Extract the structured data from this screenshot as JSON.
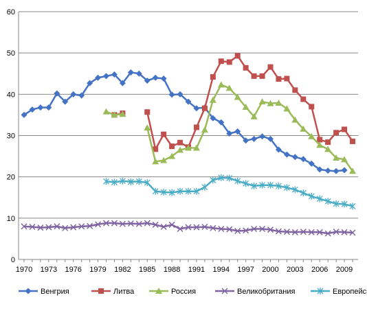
{
  "chart_data": {
    "type": "line",
    "title": "",
    "xlabel": "",
    "ylabel": "",
    "ylim": [
      0,
      60
    ],
    "yticks": [
      0,
      10,
      20,
      30,
      40,
      50,
      60
    ],
    "xlim": [
      1970,
      2010
    ],
    "xtick_labels": [
      "1970",
      "1973",
      "1976",
      "1979",
      "1982",
      "1985",
      "1988",
      "1991",
      "1994",
      "1997",
      "2000",
      "2003",
      "2006",
      "2009"
    ],
    "grid": "horizontal",
    "legend_position": "bottom",
    "x": [
      1970,
      1971,
      1972,
      1973,
      1974,
      1975,
      1976,
      1977,
      1978,
      1979,
      1980,
      1981,
      1982,
      1983,
      1984,
      1985,
      1986,
      1987,
      1988,
      1989,
      1990,
      1991,
      1992,
      1993,
      1994,
      1995,
      1996,
      1997,
      1998,
      1999,
      2000,
      2001,
      2002,
      2003,
      2004,
      2005,
      2006,
      2007,
      2008,
      2009,
      2010
    ],
    "series": [
      {
        "name": "Венгрия",
        "color": "#4472C4",
        "marker": "diamond",
        "values": [
          35.0,
          36.3,
          36.8,
          36.8,
          40.2,
          38.2,
          40.0,
          39.7,
          42.7,
          44.0,
          44.4,
          44.8,
          42.7,
          45.3,
          45.0,
          43.3,
          44.0,
          43.8,
          39.9,
          40.0,
          38.2,
          36.6,
          36.8,
          34.2,
          33.2,
          30.5,
          31.0,
          28.8,
          29.2,
          29.8,
          29.2,
          26.6,
          25.4,
          24.8,
          24.3,
          23.2,
          21.8,
          21.5,
          21.4,
          21.6,
          null
        ]
      },
      {
        "name": "Литва",
        "color": "#C0504D",
        "marker": "square",
        "values": [
          null,
          null,
          null,
          null,
          null,
          null,
          null,
          null,
          null,
          null,
          null,
          35.0,
          35.4,
          null,
          null,
          35.7,
          26.7,
          30.3,
          27.4,
          28.3,
          27.2,
          32.0,
          36.6,
          44.2,
          48.0,
          47.8,
          49.3,
          46.4,
          44.4,
          44.4,
          46.6,
          43.7,
          43.8,
          41.0,
          38.8,
          37.0,
          29.0,
          28.4,
          30.7,
          31.5,
          28.6
        ]
      },
      {
        "name": "Россия",
        "color": "#9BBB59",
        "marker": "triangle",
        "values": [
          null,
          null,
          null,
          null,
          null,
          null,
          null,
          null,
          null,
          null,
          35.8,
          35.0,
          35.2,
          null,
          null,
          31.9,
          23.7,
          24.0,
          25.0,
          26.5,
          27.0,
          27.0,
          31.4,
          38.6,
          42.3,
          41.5,
          39.3,
          36.9,
          34.6,
          38.2,
          37.8,
          37.9,
          36.5,
          33.8,
          31.6,
          29.8,
          27.7,
          26.7,
          24.6,
          24.2,
          21.4
        ]
      },
      {
        "name": "Великобритания",
        "color": "#8064A2",
        "marker": "x",
        "values": [
          8.0,
          7.9,
          7.7,
          7.8,
          8.0,
          7.6,
          7.8,
          8.0,
          8.1,
          8.5,
          8.8,
          8.8,
          8.6,
          8.7,
          8.6,
          8.8,
          8.4,
          7.9,
          8.4,
          7.4,
          7.8,
          7.8,
          7.9,
          7.6,
          7.4,
          7.3,
          6.9,
          7.0,
          7.4,
          7.4,
          7.2,
          6.8,
          6.7,
          6.6,
          6.7,
          6.6,
          6.6,
          6.3,
          6.7,
          6.6,
          6.5
        ]
      },
      {
        "name": "Европейский регион",
        "color": "#4BACC6",
        "marker": "star",
        "values": [
          null,
          null,
          null,
          null,
          null,
          null,
          null,
          null,
          null,
          null,
          18.9,
          18.7,
          19.0,
          18.8,
          18.9,
          18.6,
          16.5,
          16.3,
          16.2,
          16.5,
          16.5,
          16.5,
          17.5,
          19.2,
          19.8,
          19.7,
          19.0,
          18.4,
          17.8,
          18.0,
          18.0,
          17.8,
          17.4,
          16.9,
          16.1,
          15.3,
          14.7,
          14.1,
          13.5,
          13.4,
          12.9
        ]
      }
    ]
  }
}
